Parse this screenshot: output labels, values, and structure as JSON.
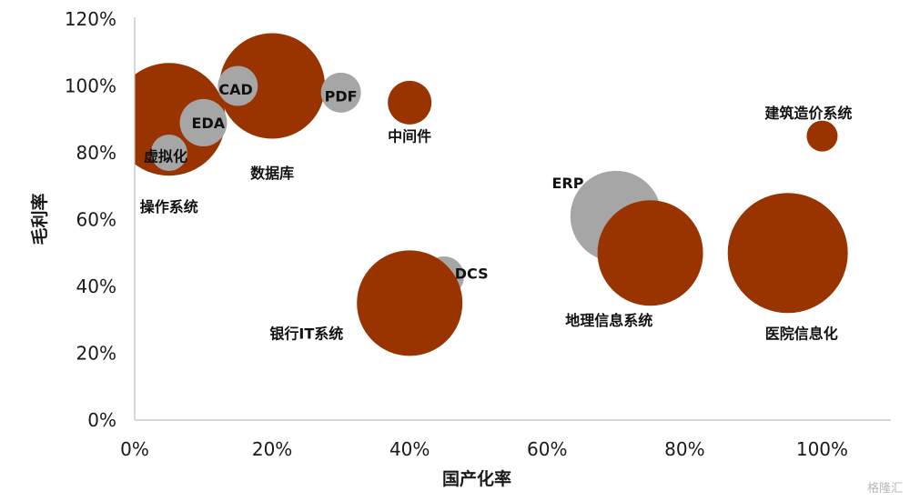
{
  "chart_data": {
    "type": "scatter",
    "subtype": "bubble",
    "xlabel": "国产化率",
    "ylabel": "毛利率",
    "xlim": [
      0,
      1.1
    ],
    "ylim": [
      0,
      1.2
    ],
    "x_ticks": [
      "0%",
      "20%",
      "40%",
      "60%",
      "80%",
      "100%"
    ],
    "y_ticks": [
      "0%",
      "20%",
      "40%",
      "60%",
      "80%",
      "100%",
      "120%"
    ],
    "grid": false,
    "colors": {
      "primary": "#993300",
      "secondary": "#A6A6A6"
    },
    "points": [
      {
        "label": "操作系统",
        "x": 0.05,
        "y": 0.9,
        "size": 62,
        "color": "#993300"
      },
      {
        "label": "数据库",
        "x": 0.2,
        "y": 1.0,
        "size": 58,
        "color": "#993300"
      },
      {
        "label": "银行IT系统",
        "x": 0.45,
        "y": 0.43,
        "size": 22,
        "color": "#A6A6A6"
      },
      {
        "label": "DCS",
        "x": 0.45,
        "y": 0.43,
        "size": 22,
        "color": "#A6A6A6"
      },
      {
        "label": "ERP",
        "x": 0.7,
        "y": 0.61,
        "size": 50,
        "color": "#A6A6A6"
      },
      {
        "label": "虚拟化",
        "x": 0.05,
        "y": 0.8,
        "size": 20,
        "color": "#A6A6A6"
      },
      {
        "label": "EDA",
        "x": 0.1,
        "y": 0.89,
        "size": 26,
        "color": "#A6A6A6"
      },
      {
        "label": "CAD",
        "x": 0.15,
        "y": 1.0,
        "size": 22,
        "color": "#A6A6A6"
      },
      {
        "label": "PDF",
        "x": 0.3,
        "y": 0.98,
        "size": 22,
        "color": "#A6A6A6"
      },
      {
        "label": "中间件",
        "x": 0.4,
        "y": 0.95,
        "size": 24,
        "color": "#993300"
      },
      {
        "label": "建筑造价系统",
        "x": 1.0,
        "y": 0.85,
        "size": 17,
        "color": "#993300"
      },
      {
        "label": "银行IT系统",
        "x": 0.4,
        "y": 0.35,
        "size": 58,
        "color": "#993300"
      },
      {
        "label": "地理信息系统",
        "x": 0.75,
        "y": 0.5,
        "size": 58,
        "color": "#993300"
      },
      {
        "label": "医院信息化",
        "x": 0.95,
        "y": 0.5,
        "size": 66,
        "color": "#993300"
      }
    ],
    "labels": [
      {
        "text": "操作系统",
        "x": 0.05,
        "y": 0.64
      },
      {
        "text": "数据库",
        "x": 0.2,
        "y": 0.74
      },
      {
        "text": "虚拟化",
        "x": 0.045,
        "y": 0.79
      },
      {
        "text": "EDA",
        "x": 0.107,
        "y": 0.89
      },
      {
        "text": "CAD",
        "x": 0.147,
        "y": 0.99
      },
      {
        "text": "PDF",
        "x": 0.3,
        "y": 0.97
      },
      {
        "text": "中间件",
        "x": 0.4,
        "y": 0.85
      },
      {
        "text": "建筑造价系统",
        "x": 0.98,
        "y": 0.92
      },
      {
        "text": "ERP",
        "x": 0.63,
        "y": 0.71
      },
      {
        "text": "DCS",
        "x": 0.49,
        "y": 0.44
      },
      {
        "text": "银行IT系统",
        "x": 0.25,
        "y": 0.26
      },
      {
        "text": "地理信息系统",
        "x": 0.69,
        "y": 0.3
      },
      {
        "text": "医院信息化",
        "x": 0.97,
        "y": 0.26
      }
    ]
  },
  "watermark": "格隆汇"
}
